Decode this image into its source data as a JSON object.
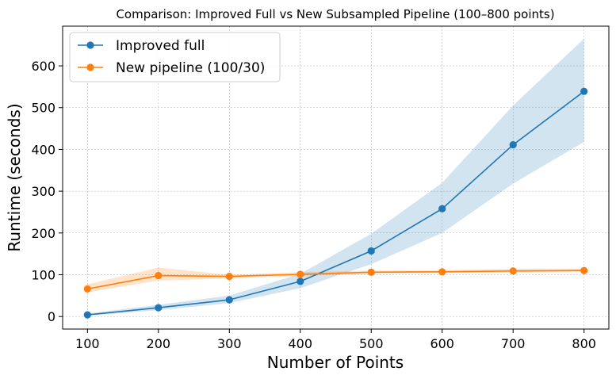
{
  "chart_data": {
    "type": "line",
    "title": "Comparison: Improved Full vs New Subsampled Pipeline (100–800 points)",
    "xlabel": "Number of Points",
    "ylabel": "Runtime (seconds)",
    "x": [
      100,
      200,
      300,
      400,
      500,
      600,
      700,
      800
    ],
    "xlim": [
      65,
      835
    ],
    "ylim": [
      -30,
      695
    ],
    "xticks": [
      100,
      200,
      300,
      400,
      500,
      600,
      700,
      800
    ],
    "yticks": [
      0,
      100,
      200,
      300,
      400,
      500,
      600
    ],
    "grid": true,
    "legend_position": "upper-left",
    "series": [
      {
        "name": "Improved full",
        "color": "#1f77b4",
        "band_color": "#1f77b4",
        "values": [
          4,
          21,
          40,
          84,
          157,
          258,
          411,
          539
        ],
        "lower": [
          2,
          15,
          32,
          68,
          125,
          200,
          318,
          418
        ],
        "upper": [
          7,
          28,
          50,
          102,
          198,
          320,
          505,
          665
        ]
      },
      {
        "name": "New pipeline (100/30)",
        "color": "#ff7f0e",
        "band_color": "#ff7f0e",
        "values": [
          66,
          98,
          96,
          101,
          106,
          107,
          109,
          110
        ],
        "lower": [
          58,
          86,
          91,
          97,
          103,
          104,
          106,
          107
        ],
        "upper": [
          77,
          117,
          100,
          106,
          110,
          111,
          114,
          115
        ]
      }
    ]
  }
}
